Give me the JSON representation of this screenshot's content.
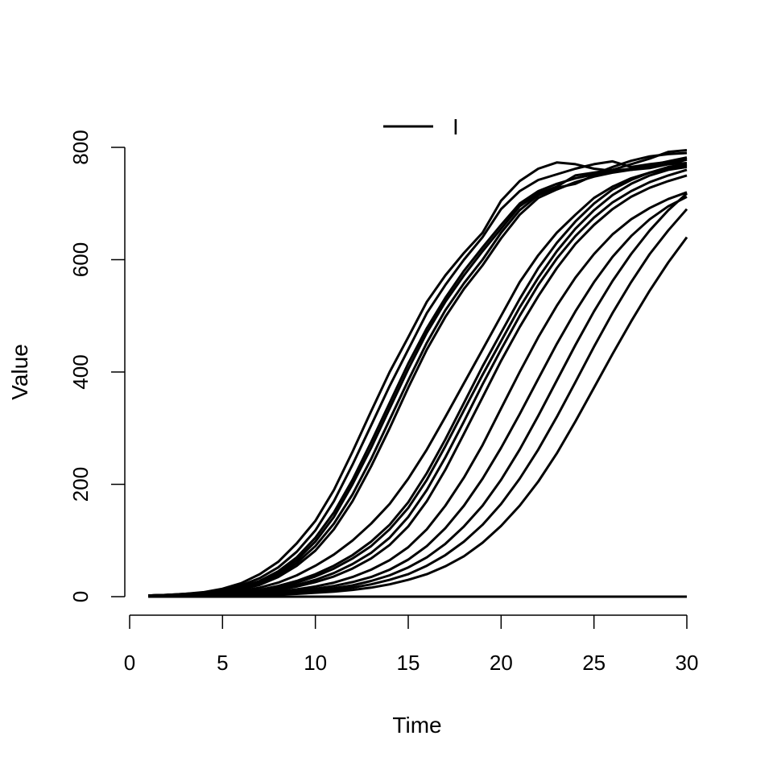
{
  "chart_data": {
    "type": "line",
    "title": "",
    "xlabel": "Time",
    "ylabel": "Value",
    "xlim": [
      0,
      30
    ],
    "ylim": [
      0,
      800
    ],
    "x_ticks": [
      0,
      5,
      10,
      15,
      20,
      25,
      30
    ],
    "y_ticks": [
      0,
      200,
      400,
      600,
      800
    ],
    "grid": false,
    "legend": {
      "position": "top",
      "entries": [
        "I"
      ]
    },
    "colors": {
      "line": "#000000",
      "axis": "#000000",
      "background": "#ffffff"
    },
    "x": [
      1,
      2,
      3,
      4,
      5,
      6,
      7,
      8,
      9,
      10,
      11,
      12,
      13,
      14,
      15,
      16,
      17,
      18,
      19,
      20,
      21,
      22,
      23,
      24,
      25,
      26,
      27,
      28,
      29,
      30
    ],
    "series": [
      {
        "values": [
          2,
          3,
          5,
          8,
          14,
          24,
          40,
          62,
          95,
          135,
          190,
          258,
          330,
          400,
          462,
          525,
          572,
          612,
          648,
          705,
          740,
          762,
          773,
          770,
          762,
          758,
          760,
          763,
          770,
          778
        ]
      },
      {
        "values": [
          2,
          3,
          5,
          7,
          12,
          20,
          33,
          52,
          80,
          118,
          170,
          235,
          305,
          375,
          440,
          505,
          555,
          600,
          640,
          690,
          722,
          742,
          752,
          762,
          770,
          775,
          765,
          770,
          774,
          780
        ]
      },
      {
        "values": [
          2,
          3,
          4,
          6,
          10,
          17,
          28,
          45,
          70,
          105,
          150,
          208,
          275,
          345,
          415,
          478,
          532,
          580,
          622,
          662,
          700,
          722,
          735,
          745,
          752,
          765,
          776,
          784,
          788,
          790
        ]
      },
      {
        "values": [
          2,
          3,
          4,
          6,
          10,
          16,
          26,
          42,
          65,
          98,
          142,
          200,
          265,
          335,
          405,
          470,
          525,
          572,
          615,
          655,
          695,
          718,
          730,
          750,
          755,
          760,
          770,
          780,
          792,
          795
        ]
      },
      {
        "values": [
          2,
          3,
          4,
          5,
          9,
          15,
          24,
          38,
          60,
          90,
          130,
          182,
          245,
          315,
          385,
          452,
          510,
          558,
          600,
          648,
          688,
          715,
          728,
          735,
          750,
          758,
          762,
          768,
          775,
          782
        ]
      },
      {
        "values": [
          2,
          3,
          4,
          5,
          8,
          13,
          21,
          35,
          55,
          82,
          120,
          170,
          232,
          300,
          372,
          440,
          498,
          548,
          590,
          638,
          680,
          710,
          725,
          738,
          748,
          755,
          760,
          765,
          770,
          772
        ]
      },
      {
        "values": [
          2,
          2,
          3,
          4,
          6,
          10,
          16,
          25,
          38,
          55,
          75,
          100,
          130,
          165,
          210,
          262,
          320,
          380,
          440,
          500,
          560,
          608,
          648,
          680,
          710,
          730,
          745,
          755,
          762,
          768
        ]
      },
      {
        "values": [
          2,
          2,
          3,
          4,
          5,
          8,
          12,
          19,
          28,
          40,
          55,
          74,
          98,
          128,
          168,
          220,
          280,
          345,
          410,
          470,
          530,
          585,
          630,
          668,
          700,
          725,
          742,
          755,
          765,
          770
        ]
      },
      {
        "values": [
          2,
          2,
          3,
          4,
          5,
          7,
          11,
          17,
          25,
          36,
          50,
          68,
          90,
          120,
          158,
          208,
          268,
          332,
          395,
          455,
          515,
          568,
          615,
          655,
          688,
          715,
          735,
          750,
          760,
          765
        ]
      },
      {
        "values": [
          2,
          2,
          3,
          3,
          4,
          6,
          9,
          14,
          21,
          30,
          42,
          58,
          78,
          105,
          142,
          190,
          248,
          312,
          378,
          440,
          500,
          555,
          602,
          642,
          675,
          702,
          722,
          738,
          750,
          760
        ]
      },
      {
        "values": [
          2,
          2,
          2,
          3,
          4,
          5,
          8,
          12,
          18,
          26,
          36,
          50,
          68,
          92,
          125,
          170,
          226,
          290,
          355,
          420,
          480,
          535,
          585,
          628,
          662,
          690,
          712,
          728,
          740,
          750
        ]
      },
      {
        "values": [
          2,
          2,
          2,
          3,
          3,
          4,
          6,
          9,
          13,
          18,
          25,
          35,
          48,
          65,
          88,
          120,
          162,
          212,
          270,
          335,
          400,
          462,
          518,
          568,
          610,
          645,
          672,
          692,
          708,
          720
        ]
      },
      {
        "values": [
          2,
          2,
          2,
          2,
          3,
          4,
          5,
          7,
          10,
          14,
          19,
          26,
          35,
          48,
          66,
          90,
          122,
          162,
          210,
          265,
          325,
          388,
          450,
          508,
          560,
          605,
          642,
          672,
          695,
          712
        ]
      },
      {
        "values": [
          2,
          2,
          2,
          2,
          3,
          3,
          4,
          6,
          8,
          11,
          15,
          20,
          28,
          38,
          52,
          70,
          94,
          125,
          162,
          208,
          262,
          322,
          385,
          448,
          508,
          562,
          610,
          652,
          688,
          718
        ]
      },
      {
        "values": [
          2,
          2,
          2,
          2,
          2,
          3,
          4,
          5,
          7,
          9,
          12,
          16,
          22,
          30,
          40,
          55,
          74,
          98,
          128,
          165,
          210,
          262,
          320,
          382,
          445,
          505,
          560,
          610,
          652,
          690
        ]
      },
      {
        "values": [
          2,
          2,
          2,
          2,
          2,
          3,
          3,
          4,
          5,
          7,
          9,
          12,
          16,
          22,
          30,
          40,
          54,
          72,
          96,
          126,
          162,
          205,
          255,
          312,
          372,
          432,
          490,
          545,
          595,
          640
        ]
      },
      {
        "values": [
          0,
          0,
          0,
          0,
          0,
          0,
          0,
          0,
          0,
          0,
          0,
          0,
          0,
          0,
          0,
          0,
          0,
          0,
          0,
          0,
          0,
          0,
          0,
          0,
          0,
          0,
          0,
          0,
          0,
          0
        ]
      }
    ]
  }
}
